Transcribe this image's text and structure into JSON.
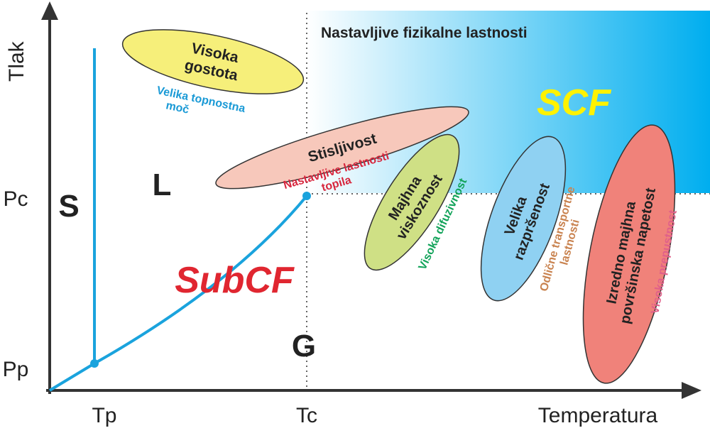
{
  "axes": {
    "y_label": "Tlak",
    "x_label": "Temperatura",
    "y_ticks": [
      "Pc",
      "Pp"
    ],
    "x_ticks": [
      "Tp",
      "Tc"
    ]
  },
  "regions": {
    "solid": "S",
    "liquid": "L",
    "gas": "G",
    "subcritical": "SubCF",
    "supercritical": "SCF",
    "supercritical_caption": "Nastavljive fizikalne lastnosti"
  },
  "properties": [
    {
      "label": [
        "Visoka",
        "gostota"
      ],
      "note": [
        "Velika topnostna",
        "moč"
      ],
      "fill": "#f6ef7a",
      "note_color": "#1a9ad6"
    },
    {
      "label": [
        "Stisljivost"
      ],
      "note": [
        "Nastavljive lastnosti",
        "topila"
      ],
      "fill": "#f7c8bb",
      "note_color": "#d7263d"
    },
    {
      "label": [
        "Majhna",
        "viskoznost"
      ],
      "note": [
        "Visoka difuzivnost"
      ],
      "fill": "#cfe085",
      "note_color": "#12a35a"
    },
    {
      "label": [
        "Velika",
        "razpršenost"
      ],
      "note": [
        "Odlične transportne",
        "lastnosti"
      ],
      "fill": "#8fd1f2",
      "note_color": "#c98350"
    },
    {
      "label": [
        "Izredno majhna",
        "površinska napetost"
      ],
      "note": [
        "Visoka prepustnost"
      ],
      "fill": "#f0827a",
      "note_color": "#e0608a"
    }
  ],
  "colors": {
    "phase_line": "#1aa3dd",
    "scf_gradient_end": "#00aeef",
    "subcf": "#e02630",
    "scf": "#fff200",
    "axis": "#333333"
  }
}
